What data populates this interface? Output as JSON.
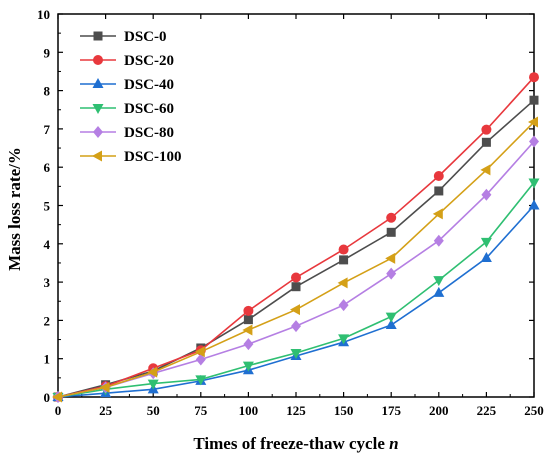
{
  "chart_data": {
    "type": "line",
    "xlabel": "Times of freeze-thaw cycle ",
    "xlabel_italic": "n",
    "ylabel": "Mass loss rate/%",
    "xlim": [
      0,
      250
    ],
    "ylim": [
      0,
      10
    ],
    "x_ticks": [
      0,
      25,
      50,
      75,
      100,
      125,
      150,
      175,
      200,
      225,
      250
    ],
    "y_ticks": [
      0,
      1,
      2,
      3,
      4,
      5,
      6,
      7,
      8,
      9,
      10
    ],
    "grid": false,
    "legend_position": "top-left",
    "x": [
      0,
      25,
      50,
      75,
      100,
      125,
      150,
      175,
      200,
      225,
      250
    ],
    "series": [
      {
        "name": "DSC-0",
        "marker": "square",
        "color": "#4d4d4d",
        "values": [
          0,
          0.32,
          0.68,
          1.28,
          2.02,
          2.88,
          3.58,
          4.3,
          5.38,
          6.65,
          7.75
        ]
      },
      {
        "name": "DSC-20",
        "marker": "circle",
        "color": "#e8383d",
        "values": [
          0,
          0.28,
          0.75,
          1.22,
          2.25,
          3.12,
          3.85,
          4.68,
          5.77,
          6.98,
          8.35
        ]
      },
      {
        "name": "DSC-40",
        "marker": "triangle-up",
        "color": "#1f6fd1",
        "values": [
          0,
          0.1,
          0.2,
          0.42,
          0.7,
          1.07,
          1.43,
          1.88,
          2.72,
          3.63,
          5.0
        ]
      },
      {
        "name": "DSC-60",
        "marker": "triangle-down",
        "color": "#2fbf72",
        "values": [
          0,
          0.2,
          0.35,
          0.46,
          0.82,
          1.15,
          1.53,
          2.1,
          3.05,
          4.05,
          5.6
        ]
      },
      {
        "name": "DSC-80",
        "marker": "diamond",
        "color": "#b57fe3",
        "values": [
          0,
          0.25,
          0.62,
          0.98,
          1.38,
          1.85,
          2.4,
          3.22,
          4.08,
          5.28,
          6.67
        ]
      },
      {
        "name": "DSC-100",
        "marker": "triangle-left",
        "color": "#d4a017",
        "values": [
          0,
          0.25,
          0.65,
          1.18,
          1.75,
          2.28,
          2.98,
          3.62,
          4.78,
          5.93,
          7.18
        ]
      }
    ]
  }
}
